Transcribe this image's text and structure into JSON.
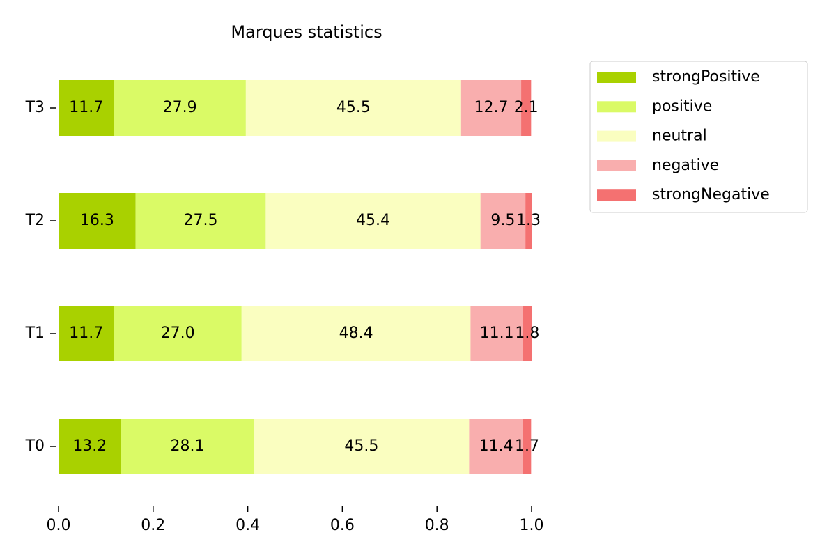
{
  "chart_data": {
    "type": "stacked-barh",
    "title": "Marques statistics",
    "categories": [
      "T0",
      "T1",
      "T2",
      "T3"
    ],
    "series": [
      {
        "name": "strongPositive",
        "color": "#a9d100",
        "values": [
          0.132,
          0.117,
          0.163,
          0.117
        ],
        "value_labels": [
          "13.2",
          "11.7",
          "16.3",
          "11.7"
        ]
      },
      {
        "name": "positive",
        "color": "#dafa66",
        "values": [
          0.281,
          0.27,
          0.275,
          0.279
        ],
        "value_labels": [
          "28.1",
          "27.0",
          "27.5",
          "27.9"
        ]
      },
      {
        "name": "neutral",
        "color": "#fafec0",
        "values": [
          0.455,
          0.484,
          0.454,
          0.455
        ],
        "value_labels": [
          "45.5",
          "48.4",
          "45.4",
          "45.5"
        ]
      },
      {
        "name": "negative",
        "color": "#f9aeae",
        "values": [
          0.114,
          0.111,
          0.095,
          0.127
        ],
        "value_labels": [
          "11.4",
          "11.1",
          "9.5",
          "12.7"
        ]
      },
      {
        "name": "strongNegative",
        "color": "#f47171",
        "values": [
          0.017,
          0.018,
          0.013,
          0.021
        ],
        "value_labels": [
          "1.7",
          "1.8",
          "1.3",
          "2.1"
        ]
      }
    ],
    "xlim": [
      0,
      1
    ],
    "xticks": [
      {
        "value": 0,
        "label": "0.0"
      },
      0.2,
      0.4,
      0.6,
      0.8,
      {
        "value": 1,
        "label": "1.0"
      }
    ],
    "legend": "upper right outside"
  }
}
